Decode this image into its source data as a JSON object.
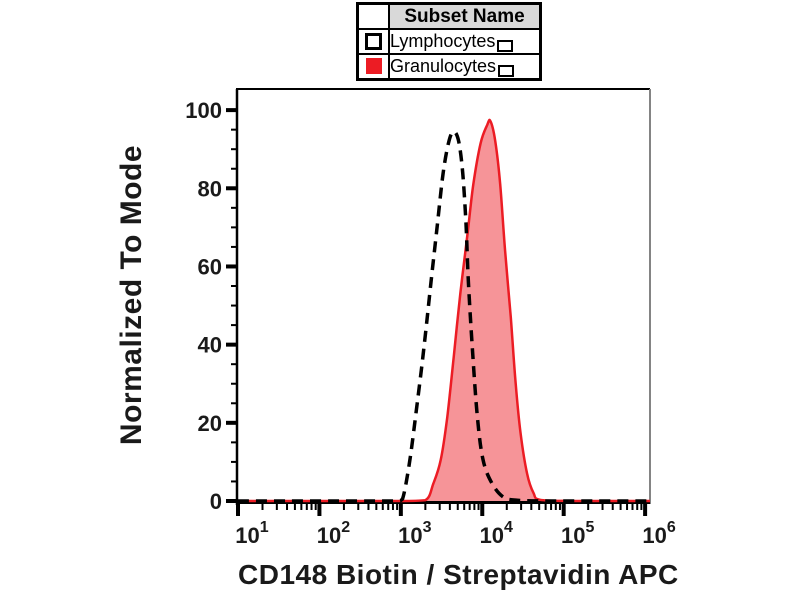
{
  "figure": {
    "background": "#ffffff"
  },
  "legend": {
    "header": "Subset Name",
    "header_bg": "#d9d9d9",
    "rows": [
      {
        "label": "Lymphocytes",
        "swatch_style": "open",
        "swatch_color": "#ffffff",
        "swatch_border": "#000000"
      },
      {
        "label": "Granulocytes",
        "swatch_style": "filled",
        "swatch_color": "#ec1c24"
      }
    ]
  },
  "chart_data": {
    "type": "line",
    "subtype": "flow-cytometry-histogram-overlay",
    "title": "",
    "xlabel": "CD148 Biotin / Streptavidin APC",
    "ylabel": "Normalized To Mode",
    "x_axis": {
      "scale": "log10",
      "min_exp": 1,
      "max_exp": 6.06,
      "major_tick_exps": [
        1,
        2,
        3,
        4,
        5,
        6
      ],
      "tick_base": "10",
      "minor_ticks": "log-multiples-2-to-9"
    },
    "y_axis": {
      "min": 0,
      "max": 100,
      "display_max": 105.4,
      "major_ticks": [
        0,
        20,
        40,
        60,
        80,
        100
      ],
      "minor_step": 5
    },
    "axis_color": "#000000",
    "frame_right_color": "#848484",
    "grid": "off",
    "legend_position": "above-plot-center",
    "series": [
      {
        "name": "Lymphocytes",
        "line": "dashed",
        "color": "#000000",
        "fill": "none",
        "points_log10x_y": [
          [
            1,
            0
          ],
          [
            1.6,
            0
          ],
          [
            2.2,
            0
          ],
          [
            2.7,
            0
          ],
          [
            2.95,
            0
          ],
          [
            3.02,
            0.5
          ],
          [
            3.1,
            9
          ],
          [
            3.18,
            21.5
          ],
          [
            3.28,
            38.5
          ],
          [
            3.37,
            56
          ],
          [
            3.45,
            71
          ],
          [
            3.52,
            84
          ],
          [
            3.59,
            92
          ],
          [
            3.65,
            94.5
          ],
          [
            3.71,
            92
          ],
          [
            3.76,
            84
          ],
          [
            3.8,
            71
          ],
          [
            3.83,
            56
          ],
          [
            3.88,
            38.5
          ],
          [
            3.94,
            21.5
          ],
          [
            4.01,
            10.5
          ],
          [
            4.12,
            4.5
          ],
          [
            4.26,
            1
          ],
          [
            4.43,
            0.2
          ],
          [
            4.8,
            0
          ],
          [
            5.4,
            0
          ],
          [
            6.06,
            0
          ]
        ]
      },
      {
        "name": "Granulocytes",
        "line": "solid",
        "color": "#ec1c24",
        "fill": "rgba(236,28,36,0.47)",
        "points_log10x_y": [
          [
            1,
            0
          ],
          [
            1.7,
            0
          ],
          [
            2.4,
            0
          ],
          [
            3.0,
            0
          ],
          [
            3.3,
            0.2
          ],
          [
            3.4,
            4.5
          ],
          [
            3.49,
            10.5
          ],
          [
            3.57,
            21.5
          ],
          [
            3.65,
            37
          ],
          [
            3.73,
            53
          ],
          [
            3.82,
            68.5
          ],
          [
            3.89,
            81
          ],
          [
            3.98,
            91.5
          ],
          [
            4.06,
            96.2
          ],
          [
            4.1,
            97.2
          ],
          [
            4.16,
            92
          ],
          [
            4.22,
            81
          ],
          [
            4.28,
            64
          ],
          [
            4.35,
            47
          ],
          [
            4.41,
            30
          ],
          [
            4.47,
            17.5
          ],
          [
            4.55,
            7
          ],
          [
            4.63,
            2
          ],
          [
            4.71,
            0.3
          ],
          [
            5.1,
            0
          ],
          [
            5.6,
            0
          ],
          [
            6.06,
            0
          ]
        ]
      }
    ]
  }
}
